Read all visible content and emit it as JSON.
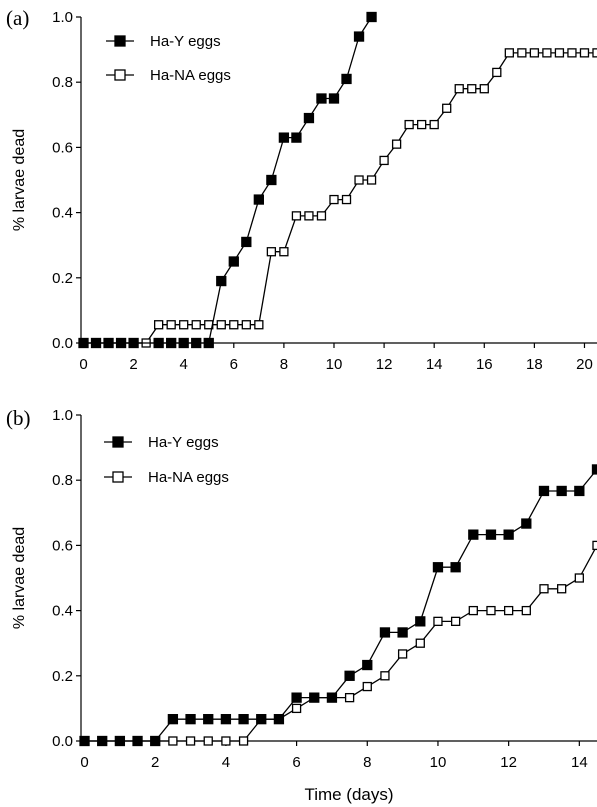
{
  "chart_data": [
    {
      "type": "line",
      "panel_label": "(a)",
      "xlabel": "",
      "ylabel": "% larvae dead",
      "xlim": [
        -0.1,
        20.5
      ],
      "ylim": [
        0,
        1.0
      ],
      "xticks": [
        0,
        2,
        4,
        6,
        8,
        10,
        12,
        14,
        16,
        18,
        20
      ],
      "yticks": [
        "0.0",
        "0.2",
        "0.4",
        "0.6",
        "0.8",
        "1.0"
      ],
      "legend_position": "top-left",
      "series": [
        {
          "name": "Ha-Y eggs",
          "marker": "filled-square",
          "color": "#000000",
          "points": [
            [
              0,
              0
            ],
            [
              0.5,
              0
            ],
            [
              1,
              0
            ],
            [
              1.5,
              0
            ],
            [
              2,
              0
            ],
            [
              3,
              0
            ],
            [
              3.5,
              0
            ],
            [
              4,
              0
            ],
            [
              4.5,
              0
            ],
            [
              5,
              0
            ],
            [
              5.5,
              0.19
            ],
            [
              6,
              0.25
            ],
            [
              6.5,
              0.31
            ],
            [
              7,
              0.44
            ],
            [
              7.5,
              0.5
            ],
            [
              8,
              0.63
            ],
            [
              8.5,
              0.63
            ],
            [
              9,
              0.69
            ],
            [
              9.5,
              0.75
            ],
            [
              10,
              0.75
            ],
            [
              10.5,
              0.81
            ],
            [
              11,
              0.94
            ],
            [
              11.5,
              1.0
            ]
          ]
        },
        {
          "name": "Ha-NA eggs",
          "marker": "open-square",
          "color": "#000000",
          "points": [
            [
              0,
              0
            ],
            [
              0.5,
              0
            ],
            [
              1,
              0
            ],
            [
              1.5,
              0
            ],
            [
              2,
              0
            ],
            [
              2.5,
              0
            ],
            [
              3,
              0.056
            ],
            [
              3.5,
              0.056
            ],
            [
              4,
              0.056
            ],
            [
              4.5,
              0.056
            ],
            [
              5,
              0.056
            ],
            [
              5.5,
              0.056
            ],
            [
              6,
              0.056
            ],
            [
              6.5,
              0.056
            ],
            [
              7,
              0.056
            ],
            [
              7.5,
              0.28
            ],
            [
              8,
              0.28
            ],
            [
              8.5,
              0.39
            ],
            [
              9,
              0.39
            ],
            [
              9.5,
              0.39
            ],
            [
              10,
              0.44
            ],
            [
              10.5,
              0.44
            ],
            [
              11,
              0.5
            ],
            [
              11.5,
              0.5
            ],
            [
              12,
              0.56
            ],
            [
              12.5,
              0.61
            ],
            [
              13,
              0.67
            ],
            [
              13.5,
              0.67
            ],
            [
              14,
              0.67
            ],
            [
              14.5,
              0.72
            ],
            [
              15,
              0.78
            ],
            [
              15.5,
              0.78
            ],
            [
              16,
              0.78
            ],
            [
              16.5,
              0.83
            ],
            [
              17,
              0.89
            ],
            [
              17.5,
              0.89
            ],
            [
              18,
              0.89
            ],
            [
              18.5,
              0.89
            ],
            [
              19,
              0.89
            ],
            [
              19.5,
              0.89
            ],
            [
              20,
              0.89
            ],
            [
              20.5,
              0.89
            ]
          ]
        }
      ]
    },
    {
      "type": "line",
      "panel_label": "(b)",
      "xlabel": "Time (days)",
      "ylabel": "% larvae dead",
      "xlim": [
        -0.1,
        14.5
      ],
      "ylim": [
        0,
        1.0
      ],
      "xticks": [
        0,
        2,
        4,
        6,
        8,
        10,
        12,
        14
      ],
      "yticks": [
        "0.0",
        "0.2",
        "0.4",
        "0.6",
        "0.8",
        "1.0"
      ],
      "legend_position": "top-left",
      "series": [
        {
          "name": "Ha-Y eggs",
          "marker": "filled-square",
          "color": "#000000",
          "points": [
            [
              0,
              0
            ],
            [
              0.5,
              0
            ],
            [
              1,
              0
            ],
            [
              1.5,
              0
            ],
            [
              2,
              0
            ],
            [
              2.5,
              0.067
            ],
            [
              3,
              0.067
            ],
            [
              3.5,
              0.067
            ],
            [
              4,
              0.067
            ],
            [
              4.5,
              0.067
            ],
            [
              5,
              0.067
            ],
            [
              5.5,
              0.067
            ],
            [
              6,
              0.133
            ],
            [
              6.5,
              0.133
            ],
            [
              7,
              0.133
            ],
            [
              7.5,
              0.2
            ],
            [
              8,
              0.233
            ],
            [
              8.5,
              0.333
            ],
            [
              9,
              0.333
            ],
            [
              9.5,
              0.367
            ],
            [
              10,
              0.533
            ],
            [
              10.5,
              0.533
            ],
            [
              11,
              0.633
            ],
            [
              11.5,
              0.633
            ],
            [
              12,
              0.633
            ],
            [
              12.5,
              0.667
            ],
            [
              13,
              0.767
            ],
            [
              13.5,
              0.767
            ],
            [
              14,
              0.767
            ],
            [
              14.5,
              0.833
            ]
          ]
        },
        {
          "name": "Ha-NA eggs",
          "marker": "open-square",
          "color": "#000000",
          "points": [
            [
              0,
              0
            ],
            [
              0.5,
              0
            ],
            [
              1,
              0
            ],
            [
              1.5,
              0
            ],
            [
              2,
              0
            ],
            [
              2.5,
              0
            ],
            [
              3,
              0
            ],
            [
              3.5,
              0
            ],
            [
              4,
              0
            ],
            [
              4.5,
              0
            ],
            [
              5,
              0.067
            ],
            [
              5.5,
              0.067
            ],
            [
              6,
              0.1
            ],
            [
              6.5,
              0.133
            ],
            [
              7,
              0.133
            ],
            [
              7.5,
              0.133
            ],
            [
              8,
              0.167
            ],
            [
              8.5,
              0.2
            ],
            [
              9,
              0.267
            ],
            [
              9.5,
              0.3
            ],
            [
              10,
              0.367
            ],
            [
              10.5,
              0.367
            ],
            [
              11,
              0.4
            ],
            [
              11.5,
              0.4
            ],
            [
              12,
              0.4
            ],
            [
              12.5,
              0.4
            ],
            [
              13,
              0.467
            ],
            [
              13.5,
              0.467
            ],
            [
              14,
              0.5
            ],
            [
              14.5,
              0.6
            ]
          ]
        }
      ]
    }
  ]
}
